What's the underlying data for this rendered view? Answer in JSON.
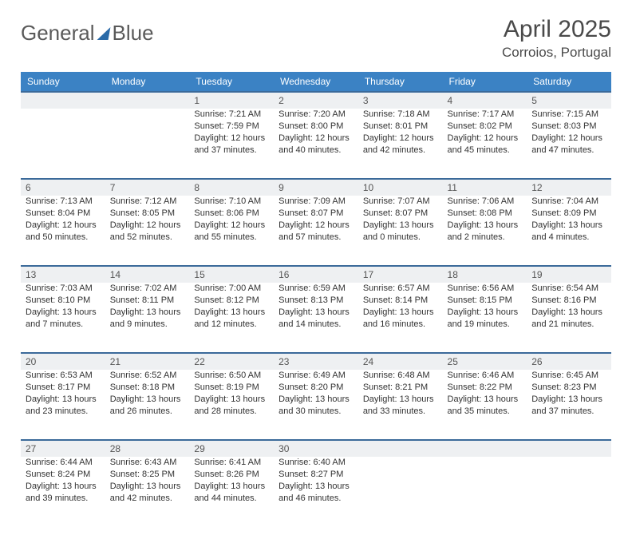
{
  "brand": {
    "word1": "General",
    "word2": "Blue"
  },
  "title": "April 2025",
  "location": "Corroios, Portugal",
  "colors": {
    "header_bg": "#3b82c4",
    "week_border": "#3b6a9a",
    "daynum_bg": "#eef0f2",
    "logo_gray": "#5a5a5a",
    "logo_blue": "#3a7ab8"
  },
  "day_names": [
    "Sunday",
    "Monday",
    "Tuesday",
    "Wednesday",
    "Thursday",
    "Friday",
    "Saturday"
  ],
  "weeks": [
    [
      null,
      null,
      {
        "n": "1",
        "sr": "Sunrise: 7:21 AM",
        "ss": "Sunset: 7:59 PM",
        "d1": "Daylight: 12 hours",
        "d2": "and 37 minutes."
      },
      {
        "n": "2",
        "sr": "Sunrise: 7:20 AM",
        "ss": "Sunset: 8:00 PM",
        "d1": "Daylight: 12 hours",
        "d2": "and 40 minutes."
      },
      {
        "n": "3",
        "sr": "Sunrise: 7:18 AM",
        "ss": "Sunset: 8:01 PM",
        "d1": "Daylight: 12 hours",
        "d2": "and 42 minutes."
      },
      {
        "n": "4",
        "sr": "Sunrise: 7:17 AM",
        "ss": "Sunset: 8:02 PM",
        "d1": "Daylight: 12 hours",
        "d2": "and 45 minutes."
      },
      {
        "n": "5",
        "sr": "Sunrise: 7:15 AM",
        "ss": "Sunset: 8:03 PM",
        "d1": "Daylight: 12 hours",
        "d2": "and 47 minutes."
      }
    ],
    [
      {
        "n": "6",
        "sr": "Sunrise: 7:13 AM",
        "ss": "Sunset: 8:04 PM",
        "d1": "Daylight: 12 hours",
        "d2": "and 50 minutes."
      },
      {
        "n": "7",
        "sr": "Sunrise: 7:12 AM",
        "ss": "Sunset: 8:05 PM",
        "d1": "Daylight: 12 hours",
        "d2": "and 52 minutes."
      },
      {
        "n": "8",
        "sr": "Sunrise: 7:10 AM",
        "ss": "Sunset: 8:06 PM",
        "d1": "Daylight: 12 hours",
        "d2": "and 55 minutes."
      },
      {
        "n": "9",
        "sr": "Sunrise: 7:09 AM",
        "ss": "Sunset: 8:07 PM",
        "d1": "Daylight: 12 hours",
        "d2": "and 57 minutes."
      },
      {
        "n": "10",
        "sr": "Sunrise: 7:07 AM",
        "ss": "Sunset: 8:07 PM",
        "d1": "Daylight: 13 hours",
        "d2": "and 0 minutes."
      },
      {
        "n": "11",
        "sr": "Sunrise: 7:06 AM",
        "ss": "Sunset: 8:08 PM",
        "d1": "Daylight: 13 hours",
        "d2": "and 2 minutes."
      },
      {
        "n": "12",
        "sr": "Sunrise: 7:04 AM",
        "ss": "Sunset: 8:09 PM",
        "d1": "Daylight: 13 hours",
        "d2": "and 4 minutes."
      }
    ],
    [
      {
        "n": "13",
        "sr": "Sunrise: 7:03 AM",
        "ss": "Sunset: 8:10 PM",
        "d1": "Daylight: 13 hours",
        "d2": "and 7 minutes."
      },
      {
        "n": "14",
        "sr": "Sunrise: 7:02 AM",
        "ss": "Sunset: 8:11 PM",
        "d1": "Daylight: 13 hours",
        "d2": "and 9 minutes."
      },
      {
        "n": "15",
        "sr": "Sunrise: 7:00 AM",
        "ss": "Sunset: 8:12 PM",
        "d1": "Daylight: 13 hours",
        "d2": "and 12 minutes."
      },
      {
        "n": "16",
        "sr": "Sunrise: 6:59 AM",
        "ss": "Sunset: 8:13 PM",
        "d1": "Daylight: 13 hours",
        "d2": "and 14 minutes."
      },
      {
        "n": "17",
        "sr": "Sunrise: 6:57 AM",
        "ss": "Sunset: 8:14 PM",
        "d1": "Daylight: 13 hours",
        "d2": "and 16 minutes."
      },
      {
        "n": "18",
        "sr": "Sunrise: 6:56 AM",
        "ss": "Sunset: 8:15 PM",
        "d1": "Daylight: 13 hours",
        "d2": "and 19 minutes."
      },
      {
        "n": "19",
        "sr": "Sunrise: 6:54 AM",
        "ss": "Sunset: 8:16 PM",
        "d1": "Daylight: 13 hours",
        "d2": "and 21 minutes."
      }
    ],
    [
      {
        "n": "20",
        "sr": "Sunrise: 6:53 AM",
        "ss": "Sunset: 8:17 PM",
        "d1": "Daylight: 13 hours",
        "d2": "and 23 minutes."
      },
      {
        "n": "21",
        "sr": "Sunrise: 6:52 AM",
        "ss": "Sunset: 8:18 PM",
        "d1": "Daylight: 13 hours",
        "d2": "and 26 minutes."
      },
      {
        "n": "22",
        "sr": "Sunrise: 6:50 AM",
        "ss": "Sunset: 8:19 PM",
        "d1": "Daylight: 13 hours",
        "d2": "and 28 minutes."
      },
      {
        "n": "23",
        "sr": "Sunrise: 6:49 AM",
        "ss": "Sunset: 8:20 PM",
        "d1": "Daylight: 13 hours",
        "d2": "and 30 minutes."
      },
      {
        "n": "24",
        "sr": "Sunrise: 6:48 AM",
        "ss": "Sunset: 8:21 PM",
        "d1": "Daylight: 13 hours",
        "d2": "and 33 minutes."
      },
      {
        "n": "25",
        "sr": "Sunrise: 6:46 AM",
        "ss": "Sunset: 8:22 PM",
        "d1": "Daylight: 13 hours",
        "d2": "and 35 minutes."
      },
      {
        "n": "26",
        "sr": "Sunrise: 6:45 AM",
        "ss": "Sunset: 8:23 PM",
        "d1": "Daylight: 13 hours",
        "d2": "and 37 minutes."
      }
    ],
    [
      {
        "n": "27",
        "sr": "Sunrise: 6:44 AM",
        "ss": "Sunset: 8:24 PM",
        "d1": "Daylight: 13 hours",
        "d2": "and 39 minutes."
      },
      {
        "n": "28",
        "sr": "Sunrise: 6:43 AM",
        "ss": "Sunset: 8:25 PM",
        "d1": "Daylight: 13 hours",
        "d2": "and 42 minutes."
      },
      {
        "n": "29",
        "sr": "Sunrise: 6:41 AM",
        "ss": "Sunset: 8:26 PM",
        "d1": "Daylight: 13 hours",
        "d2": "and 44 minutes."
      },
      {
        "n": "30",
        "sr": "Sunrise: 6:40 AM",
        "ss": "Sunset: 8:27 PM",
        "d1": "Daylight: 13 hours",
        "d2": "and 46 minutes."
      },
      null,
      null,
      null
    ]
  ]
}
